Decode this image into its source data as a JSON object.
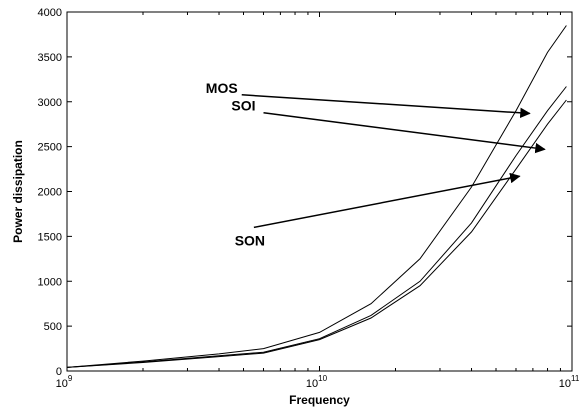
{
  "chart_data": {
    "type": "line",
    "title": "",
    "xlabel": "Frequency",
    "ylabel": "Power dissipation",
    "xscale": "log",
    "xlim": [
      1000000000,
      100000000000
    ],
    "ylim": [
      0,
      4000
    ],
    "xticks": [
      {
        "value": 1000000000,
        "base": "10",
        "exp": "9"
      },
      {
        "value": 10000000000,
        "base": "10",
        "exp": "10"
      },
      {
        "value": 100000000000,
        "base": "10",
        "exp": "11"
      }
    ],
    "yticks": [
      {
        "value": 0,
        "label": "0"
      },
      {
        "value": 500,
        "label": "500"
      },
      {
        "value": 1000,
        "label": "1000"
      },
      {
        "value": 1500,
        "label": "1500"
      },
      {
        "value": 2000,
        "label": "2000"
      },
      {
        "value": 2500,
        "label": "2500"
      },
      {
        "value": 3000,
        "label": "3000"
      },
      {
        "value": 3500,
        "label": "3500"
      },
      {
        "value": 4000,
        "label": "4000"
      }
    ],
    "grid": false,
    "legend": "none",
    "series": [
      {
        "label": "MOS",
        "color": "#000000",
        "x": [
          1000000000,
          2000000000,
          4000000000,
          6000000000,
          10000000000,
          16000000000,
          25000000000,
          40000000000,
          60000000000,
          80000000000,
          95000000000
        ],
        "y": [
          40,
          110,
          190,
          250,
          430,
          750,
          1250,
          2050,
          2900,
          3550,
          3850
        ]
      },
      {
        "label": "SOI",
        "color": "#000000",
        "x": [
          1000000000,
          2000000000,
          4000000000,
          6000000000,
          10000000000,
          16000000000,
          25000000000,
          40000000000,
          60000000000,
          80000000000,
          95000000000
        ],
        "y": [
          40,
          100,
          170,
          210,
          360,
          620,
          1000,
          1650,
          2400,
          2900,
          3170
        ]
      },
      {
        "label": "SON",
        "color": "#000000",
        "x": [
          1000000000,
          2000000000,
          4000000000,
          6000000000,
          10000000000,
          16000000000,
          25000000000,
          40000000000,
          60000000000,
          80000000000,
          95000000000
        ],
        "y": [
          40,
          95,
          160,
          200,
          350,
          590,
          950,
          1550,
          2250,
          2750,
          3020
        ]
      }
    ],
    "annotations": [
      {
        "label": "MOS",
        "text_x": 4100000000,
        "text_y": 3100,
        "arrow_to_x": 68000000000,
        "arrow_to_y": 2870
      },
      {
        "label": "SOI",
        "text_x": 5000000000,
        "text_y": 2900,
        "arrow_to_x": 78000000000,
        "arrow_to_y": 2470
      },
      {
        "label": "SON",
        "text_x": 5300000000,
        "text_y": 1400,
        "arrow_to_x": 62000000000,
        "arrow_to_y": 2170
      }
    ]
  }
}
